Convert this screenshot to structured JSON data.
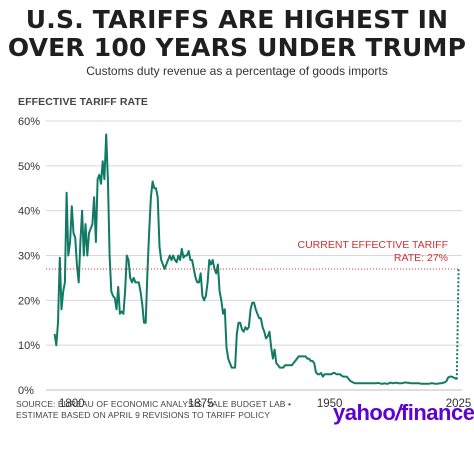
{
  "header": {
    "title_line1": "U.S. TARIFFS ARE HIGHEST IN",
    "title_line2": "OVER 100 YEARS UNDER TRUMP",
    "subtitle": "Customs duty revenue as a percentage of goods imports",
    "axis_title": "EFFECTIVE TARIFF RATE"
  },
  "annotation": {
    "line1": "CURRENT EFFECTIVE TARIFF",
    "line2": "RATE: 27%",
    "value": 27
  },
  "footer": {
    "source_line1": "SOURCE: BUREAU OF ECONOMIC ANALYSIS; YALE BUDGET LAB •",
    "source_line2": "ESTIMATE BASED ON APRIL 9 REVISIONS TO TARIFF POLICY",
    "logo_part1": "yahoo",
    "logo_part2": "/",
    "logo_part3": "finance"
  },
  "colors": {
    "series": "#117a65",
    "annotation": "#d32f2f",
    "grid": "#d8d8d8",
    "logo": "#5f01d1"
  },
  "chart_data": {
    "type": "line",
    "title": "U.S. TARIFFS ARE HIGHEST IN OVER 100 YEARS UNDER TRUMP",
    "subtitle": "Customs duty revenue as a percentage of goods imports",
    "ylabel": "EFFECTIVE TARIFF RATE",
    "xlim": [
      1785,
      2027
    ],
    "ylim": [
      0,
      60
    ],
    "x_ticks": [
      1800,
      1875,
      1950,
      2025
    ],
    "y_ticks": [
      0,
      10,
      20,
      30,
      40,
      50,
      60
    ],
    "y_tick_labels": [
      "0%",
      "10%",
      "20%",
      "30%",
      "40%",
      "50%",
      "60%"
    ],
    "grid": true,
    "series": [
      {
        "values": [
          [
            1790,
            12.5
          ],
          [
            1791,
            10
          ],
          [
            1792,
            15
          ],
          [
            1793,
            29.5
          ],
          [
            1794,
            18
          ],
          [
            1795,
            22
          ],
          [
            1796,
            24
          ],
          [
            1797,
            44
          ],
          [
            1798,
            30
          ],
          [
            1799,
            33
          ],
          [
            1800,
            41
          ],
          [
            1801,
            35
          ],
          [
            1802,
            34
          ],
          [
            1803,
            28
          ],
          [
            1804,
            24
          ],
          [
            1805,
            33
          ],
          [
            1806,
            40
          ],
          [
            1807,
            30
          ],
          [
            1808,
            37
          ],
          [
            1809,
            30
          ],
          [
            1810,
            35
          ],
          [
            1811,
            36
          ],
          [
            1812,
            37
          ],
          [
            1813,
            43
          ],
          [
            1814,
            33
          ],
          [
            1815,
            47
          ],
          [
            1816,
            48
          ],
          [
            1817,
            46
          ],
          [
            1818,
            51
          ],
          [
            1819,
            47
          ],
          [
            1820,
            57
          ],
          [
            1821,
            47
          ],
          [
            1822,
            30
          ],
          [
            1823,
            22
          ],
          [
            1824,
            21
          ],
          [
            1825,
            20.5
          ],
          [
            1826,
            18
          ],
          [
            1827,
            23
          ],
          [
            1828,
            17
          ],
          [
            1829,
            17.5
          ],
          [
            1830,
            17
          ],
          [
            1831,
            22
          ],
          [
            1832,
            30
          ],
          [
            1833,
            29
          ],
          [
            1834,
            25
          ],
          [
            1835,
            24
          ],
          [
            1836,
            25
          ],
          [
            1837,
            24
          ],
          [
            1838,
            24
          ],
          [
            1839,
            24
          ],
          [
            1840,
            22
          ],
          [
            1841,
            19
          ],
          [
            1842,
            15
          ],
          [
            1843,
            15
          ],
          [
            1844,
            26
          ],
          [
            1845,
            35
          ],
          [
            1846,
            43
          ],
          [
            1847,
            46.5
          ],
          [
            1848,
            45
          ],
          [
            1849,
            45
          ],
          [
            1850,
            43
          ],
          [
            1851,
            32
          ],
          [
            1852,
            29
          ],
          [
            1853,
            28
          ],
          [
            1854,
            27
          ],
          [
            1855,
            28
          ],
          [
            1856,
            29
          ],
          [
            1857,
            30
          ],
          [
            1858,
            29
          ],
          [
            1859,
            30
          ],
          [
            1860,
            29
          ],
          [
            1861,
            28.5
          ],
          [
            1862,
            30
          ],
          [
            1863,
            29
          ],
          [
            1864,
            31.5
          ],
          [
            1865,
            29.5
          ],
          [
            1866,
            30
          ],
          [
            1867,
            30
          ],
          [
            1868,
            31
          ],
          [
            1869,
            29
          ],
          [
            1870,
            29
          ],
          [
            1871,
            27
          ],
          [
            1872,
            25
          ],
          [
            1873,
            24
          ],
          [
            1874,
            24
          ],
          [
            1875,
            26
          ],
          [
            1876,
            21
          ],
          [
            1877,
            20
          ],
          [
            1878,
            21
          ],
          [
            1879,
            24
          ],
          [
            1880,
            29
          ],
          [
            1881,
            28
          ],
          [
            1882,
            29
          ],
          [
            1883,
            27
          ],
          [
            1884,
            26
          ],
          [
            1885,
            28
          ],
          [
            1886,
            22
          ],
          [
            1887,
            20
          ],
          [
            1888,
            17
          ],
          [
            1889,
            18
          ],
          [
            1890,
            9.5
          ],
          [
            1891,
            7
          ],
          [
            1892,
            6
          ],
          [
            1893,
            5
          ],
          [
            1894,
            5
          ],
          [
            1895,
            5
          ],
          [
            1896,
            12.5
          ],
          [
            1897,
            15
          ],
          [
            1898,
            15
          ],
          [
            1899,
            13.5
          ],
          [
            1900,
            13
          ],
          [
            1901,
            14
          ],
          [
            1902,
            13.5
          ],
          [
            1903,
            14
          ],
          [
            1904,
            18
          ],
          [
            1905,
            19.5
          ],
          [
            1906,
            19.5
          ],
          [
            1907,
            18
          ],
          [
            1908,
            17
          ],
          [
            1909,
            16
          ],
          [
            1910,
            16
          ],
          [
            1911,
            14
          ],
          [
            1912,
            13
          ],
          [
            1913,
            11.5
          ],
          [
            1914,
            12
          ],
          [
            1915,
            13
          ],
          [
            1916,
            9.5
          ],
          [
            1917,
            7
          ],
          [
            1918,
            9
          ],
          [
            1919,
            6
          ],
          [
            1920,
            5.5
          ],
          [
            1921,
            5
          ],
          [
            1922,
            5
          ],
          [
            1923,
            5
          ],
          [
            1924,
            5.5
          ],
          [
            1925,
            5.5
          ],
          [
            1926,
            5.5
          ],
          [
            1927,
            5.5
          ],
          [
            1928,
            5.5
          ],
          [
            1929,
            6
          ],
          [
            1930,
            6.5
          ],
          [
            1931,
            7
          ],
          [
            1932,
            7.5
          ],
          [
            1933,
            7.5
          ],
          [
            1934,
            7.5
          ],
          [
            1935,
            7.5
          ],
          [
            1936,
            7.5
          ],
          [
            1937,
            7
          ],
          [
            1938,
            7
          ],
          [
            1939,
            6.5
          ],
          [
            1940,
            6.5
          ],
          [
            1941,
            6
          ],
          [
            1942,
            4
          ],
          [
            1943,
            3.5
          ],
          [
            1944,
            3.5
          ],
          [
            1945,
            3.8
          ],
          [
            1946,
            3
          ],
          [
            1947,
            3.5
          ],
          [
            1948,
            3.5
          ],
          [
            1949,
            3.5
          ],
          [
            1950,
            3.5
          ],
          [
            1951,
            3.5
          ],
          [
            1952,
            3.8
          ],
          [
            1953,
            3.8
          ],
          [
            1954,
            3.5
          ],
          [
            1955,
            3.5
          ],
          [
            1956,
            3.5
          ],
          [
            1957,
            3.2
          ],
          [
            1958,
            3
          ],
          [
            1959,
            3
          ],
          [
            1960,
            3
          ],
          [
            1961,
            2.5
          ],
          [
            1962,
            2
          ],
          [
            1963,
            1.8
          ],
          [
            1964,
            1.6
          ],
          [
            1965,
            1.5
          ],
          [
            1966,
            1.5
          ],
          [
            1967,
            1.5
          ],
          [
            1968,
            1.5
          ],
          [
            1969,
            1.5
          ],
          [
            1970,
            1.5
          ],
          [
            1971,
            1.5
          ],
          [
            1972,
            1.5
          ],
          [
            1973,
            1.5
          ],
          [
            1974,
            1.5
          ],
          [
            1975,
            1.5
          ],
          [
            1976,
            1.5
          ],
          [
            1977,
            1.5
          ],
          [
            1978,
            1.6
          ],
          [
            1979,
            1.5
          ],
          [
            1980,
            1.4
          ],
          [
            1981,
            1.4
          ],
          [
            1982,
            1.5
          ],
          [
            1983,
            1.4
          ],
          [
            1984,
            1.4
          ],
          [
            1985,
            1.6
          ],
          [
            1986,
            1.6
          ],
          [
            1987,
            1.5
          ],
          [
            1988,
            1.6
          ],
          [
            1989,
            1.6
          ],
          [
            1990,
            1.5
          ],
          [
            1991,
            1.5
          ],
          [
            1992,
            1.5
          ],
          [
            1993,
            1.6
          ],
          [
            1994,
            1.7
          ],
          [
            1995,
            1.6
          ],
          [
            1996,
            1.6
          ],
          [
            1997,
            1.5
          ],
          [
            1998,
            1.5
          ],
          [
            1999,
            1.5
          ],
          [
            2000,
            1.5
          ],
          [
            2001,
            1.5
          ],
          [
            2002,
            1.5
          ],
          [
            2003,
            1.4
          ],
          [
            2004,
            1.4
          ],
          [
            2005,
            1.4
          ],
          [
            2006,
            1.4
          ],
          [
            2007,
            1.4
          ],
          [
            2008,
            1.4
          ],
          [
            2009,
            1.5
          ],
          [
            2010,
            1.5
          ],
          [
            2011,
            1.4
          ],
          [
            2012,
            1.4
          ],
          [
            2013,
            1.4
          ],
          [
            2014,
            1.5
          ],
          [
            2015,
            1.5
          ],
          [
            2016,
            1.6
          ],
          [
            2017,
            1.7
          ],
          [
            2018,
            2
          ],
          [
            2019,
            2.8
          ],
          [
            2020,
            3
          ],
          [
            2021,
            3
          ],
          [
            2022,
            2.8
          ],
          [
            2023,
            2.6
          ],
          [
            2024,
            2.4
          ]
        ],
        "projection": [
          [
            2024,
            2.4
          ],
          [
            2025,
            27
          ]
        ]
      }
    ]
  }
}
